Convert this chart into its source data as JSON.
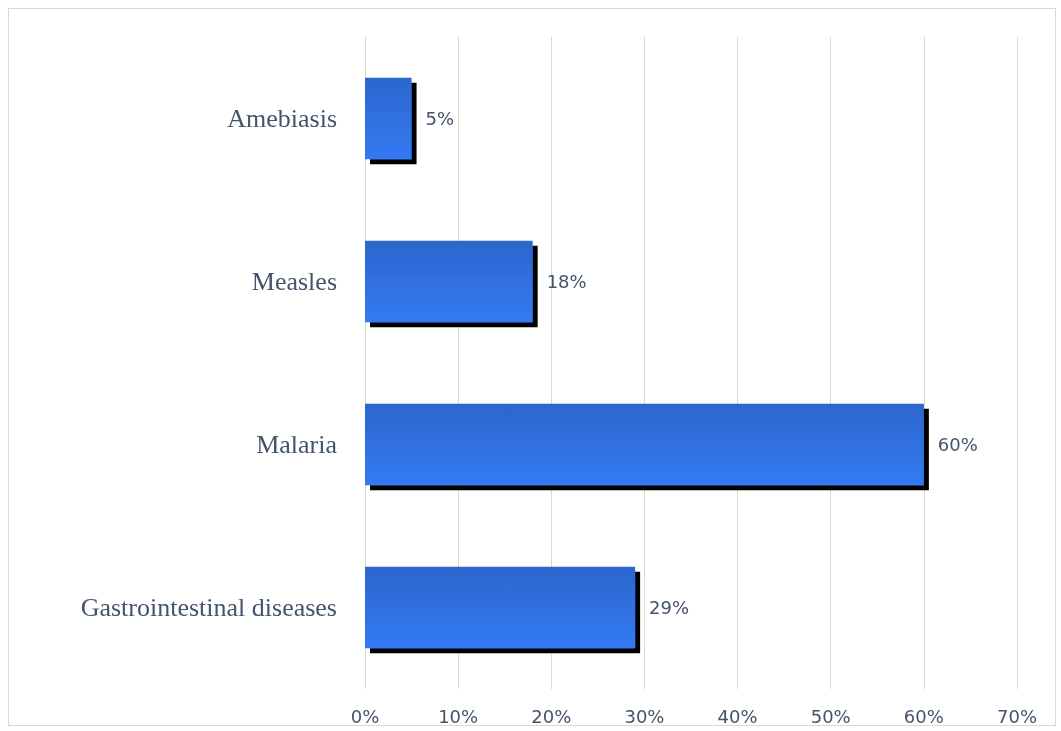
{
  "chart_data": {
    "type": "bar",
    "orientation": "horizontal",
    "categories": [
      "Amebiasis",
      "Measles",
      "Malaria",
      "Gastrointestinal diseases"
    ],
    "values": [
      5,
      18,
      60,
      29
    ],
    "value_labels": [
      "5%",
      "18%",
      "60%",
      "29%"
    ],
    "color": "#2c66cc",
    "xlim": [
      0,
      70
    ],
    "xticks": [
      {
        "value": 0,
        "label": "0%"
      },
      {
        "value": 10,
        "label": "10%"
      },
      {
        "value": 20,
        "label": "20%"
      },
      {
        "value": 30,
        "label": "30%"
      },
      {
        "value": 40,
        "label": "40%"
      },
      {
        "value": 50,
        "label": "50%"
      },
      {
        "value": 60,
        "label": "60%"
      },
      {
        "value": 70,
        "label": "70%"
      }
    ],
    "grid": "x"
  }
}
